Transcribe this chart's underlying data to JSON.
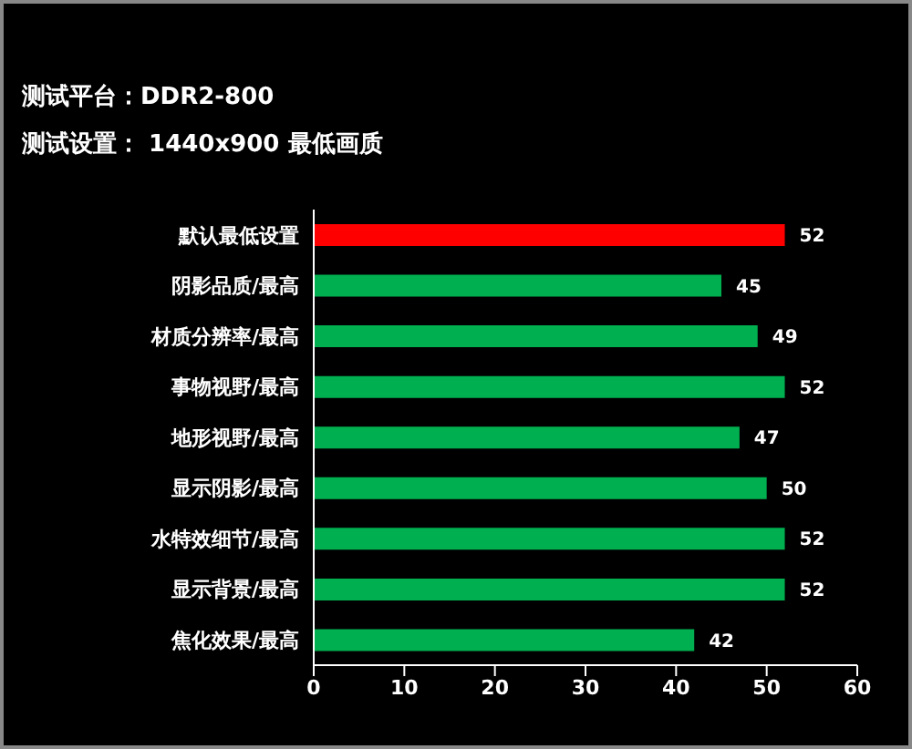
{
  "chart_data": {
    "type": "bar",
    "orientation": "horizontal",
    "subtitle": "测试平台：DDR2-800",
    "annotations": [
      "测试设置： 1440x900 最低画质"
    ],
    "categories": [
      "默认最低设置",
      "阴影品质/最高",
      "材质分辨率/最高",
      "事物视野/最高",
      "地形视野/最高",
      "显示阴影/最高",
      "水特效细节/最高",
      "显示背景/最高",
      "焦化效果/最高"
    ],
    "values": [
      52,
      45,
      49,
      52,
      47,
      50,
      52,
      52,
      42
    ],
    "colors": [
      "#ff0000",
      "#00b050",
      "#00b050",
      "#00b050",
      "#00b050",
      "#00b050",
      "#00b050",
      "#00b050",
      "#00b050"
    ],
    "xlim": [
      0,
      60
    ],
    "xticks": [
      0,
      10,
      20,
      30,
      40,
      50,
      60
    ],
    "data_labels": true
  }
}
